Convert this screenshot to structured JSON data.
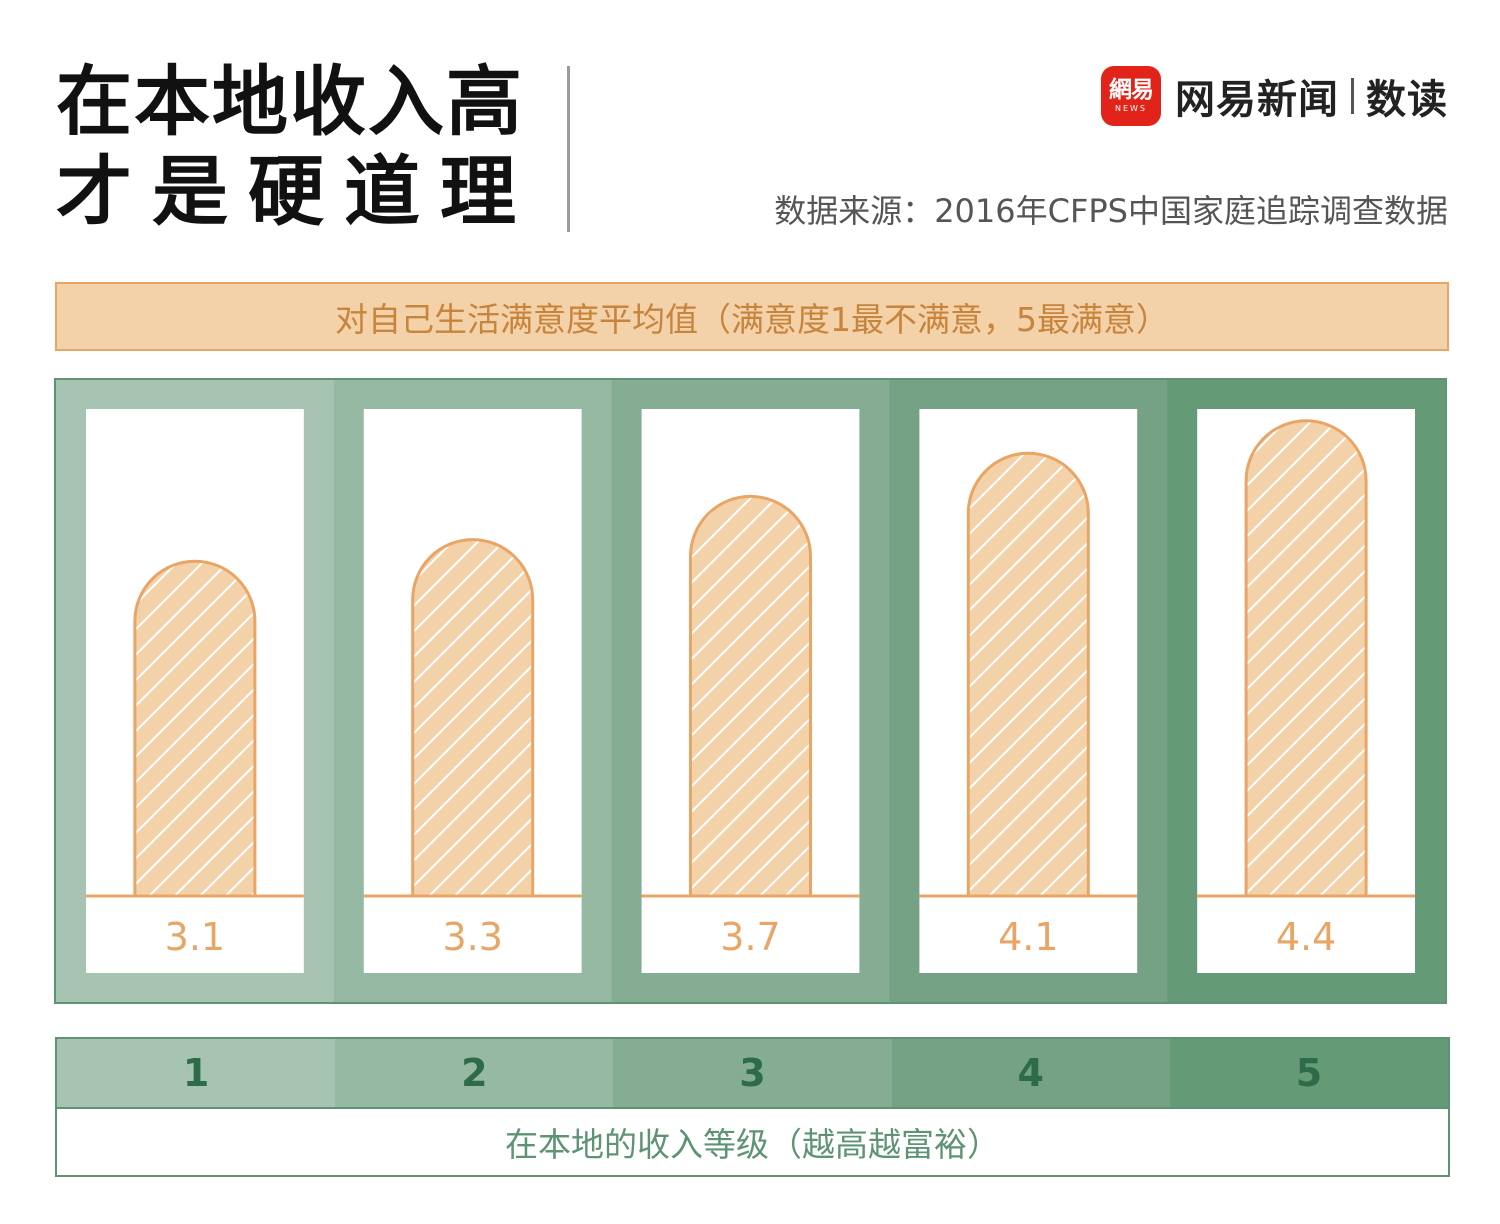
{
  "title": {
    "line1": "在本地收入高",
    "line2": "才是硬道理"
  },
  "brand": {
    "logo_text": "網易",
    "logo_sub": "NEWS",
    "name": "网易新闻",
    "section": "数读"
  },
  "source": "数据来源：2016年CFPS中国家庭追踪调查数据",
  "chart_data": {
    "type": "bar",
    "title": "对自己生活满意度平均值（满意度1最不满意，5最满意）",
    "xlabel": "在本地的收入等级（越高越富裕）",
    "categories": [
      "1",
      "2",
      "3",
      "4",
      "5"
    ],
    "values": [
      3.1,
      3.3,
      3.7,
      4.1,
      4.4
    ],
    "value_labels": [
      "3.1",
      "3.3",
      "3.7",
      "4.1",
      "4.4"
    ],
    "ylim": [
      1,
      5
    ],
    "colors": {
      "column_backgrounds": [
        "#a6c4b1",
        "#95b9a2",
        "#85ad93",
        "#75a284",
        "#659a77"
      ],
      "bar_fill": "#f3d1a9",
      "bar_stroke": "#e9a566",
      "value_text": "#e9a566",
      "category_text": "#2d6b49"
    }
  }
}
